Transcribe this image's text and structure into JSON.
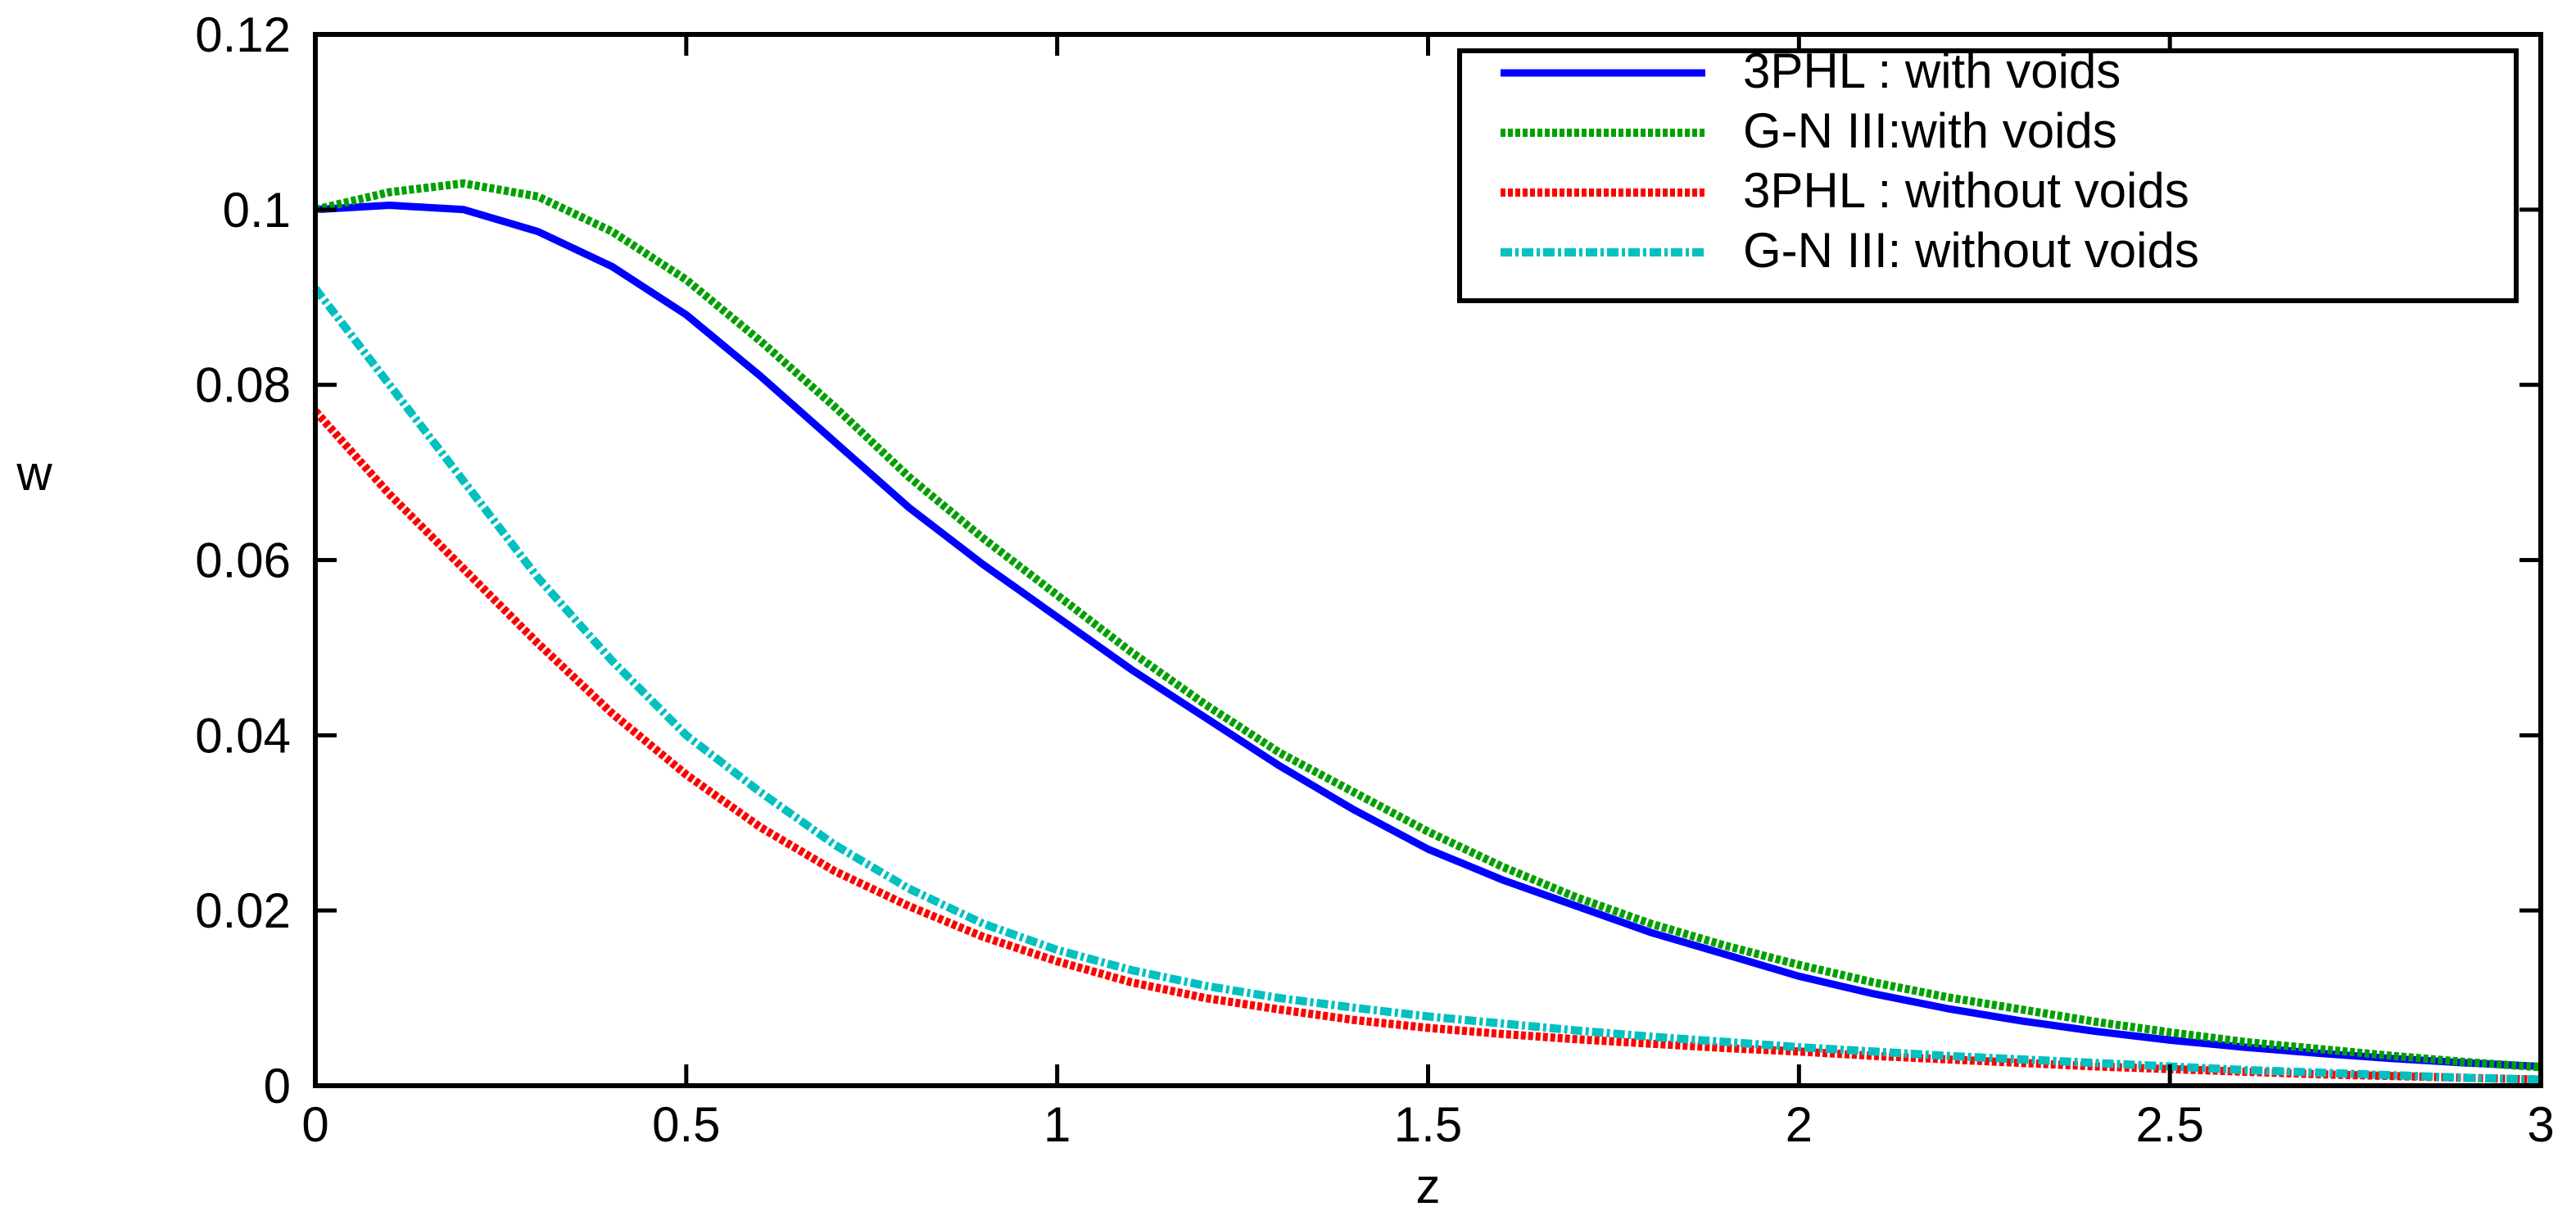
{
  "chart_data": {
    "type": "line",
    "xlabel": "z",
    "ylabel": "w",
    "xlim": [
      0,
      3
    ],
    "ylim": [
      0,
      0.12
    ],
    "x_ticks": [
      "0",
      "0.5",
      "1",
      "1.5",
      "2",
      "2.5",
      "3"
    ],
    "y_ticks": [
      "0",
      "0.02",
      "0.04",
      "0.06",
      "0.08",
      "0.1",
      "0.12"
    ],
    "grid": false,
    "legend_position": "top-right",
    "x": [
      0,
      0.1,
      0.2,
      0.3,
      0.4,
      0.5,
      0.6,
      0.7,
      0.8,
      0.9,
      1.0,
      1.1,
      1.2,
      1.3,
      1.4,
      1.5,
      1.6,
      1.7,
      1.8,
      1.9,
      2.0,
      2.1,
      2.2,
      2.3,
      2.4,
      2.5,
      2.6,
      2.7,
      2.8,
      2.9,
      3.0
    ],
    "series": [
      {
        "name": "3PHL : with voids",
        "color": "#0000ff",
        "style": "solid",
        "values": [
          0.1,
          0.1005,
          0.1,
          0.0975,
          0.0935,
          0.088,
          0.081,
          0.0735,
          0.066,
          0.0595,
          0.0535,
          0.0475,
          0.042,
          0.0365,
          0.0315,
          0.027,
          0.0235,
          0.0205,
          0.0175,
          0.015,
          0.0125,
          0.0105,
          0.0088,
          0.0074,
          0.0062,
          0.0052,
          0.0044,
          0.0037,
          0.0031,
          0.0026,
          0.0022
        ]
      },
      {
        "name": "G-N III:with voids",
        "color": "#00a000",
        "style": "dotted",
        "values": [
          0.1,
          0.102,
          0.103,
          0.1015,
          0.0975,
          0.092,
          0.085,
          0.0775,
          0.0695,
          0.0625,
          0.056,
          0.0495,
          0.0435,
          0.038,
          0.0335,
          0.029,
          0.025,
          0.0215,
          0.0185,
          0.016,
          0.0138,
          0.0118,
          0.0101,
          0.0087,
          0.0073,
          0.0061,
          0.005,
          0.0042,
          0.0034,
          0.0027,
          0.0021
        ]
      },
      {
        "name": "3PHL : without voids",
        "color": "#ff0000",
        "style": "dotted",
        "values": [
          0.077,
          0.0675,
          0.059,
          0.0505,
          0.0425,
          0.0355,
          0.0295,
          0.0245,
          0.0205,
          0.017,
          0.0142,
          0.0118,
          0.01,
          0.0087,
          0.0075,
          0.0066,
          0.0059,
          0.0053,
          0.0048,
          0.0043,
          0.0039,
          0.0034,
          0.003,
          0.0026,
          0.0022,
          0.0019,
          0.0016,
          0.0013,
          0.0011,
          0.0009,
          0.0007
        ]
      },
      {
        "name": "G-N III: without voids",
        "color": "#00c0c0",
        "style": "dashdot",
        "values": [
          0.091,
          0.08,
          0.069,
          0.058,
          0.0485,
          0.04,
          0.0335,
          0.0275,
          0.0225,
          0.0185,
          0.0155,
          0.0132,
          0.0114,
          0.01,
          0.0089,
          0.0079,
          0.0071,
          0.0063,
          0.0056,
          0.005,
          0.0044,
          0.0039,
          0.0034,
          0.003,
          0.0026,
          0.0022,
          0.0018,
          0.0015,
          0.0012,
          0.0009,
          0.0007
        ]
      }
    ]
  }
}
